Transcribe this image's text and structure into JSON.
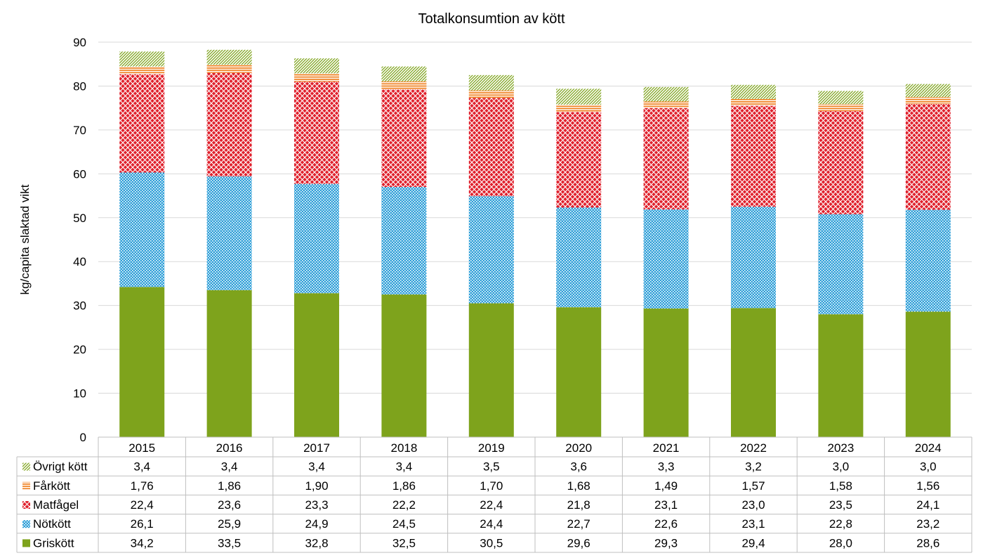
{
  "chart_data": {
    "type": "bar",
    "stacked": true,
    "title": "Totalkonsumtion av kött",
    "xlabel": "",
    "ylabel": "kg/capita slaktad vikt",
    "ylim": [
      0,
      90
    ],
    "yticks": [
      "0",
      "10",
      "20",
      "30",
      "40",
      "50",
      "60",
      "70",
      "80",
      "90"
    ],
    "grid": true,
    "legend": "data-table",
    "categories": [
      "2015",
      "2016",
      "2017",
      "2018",
      "2019",
      "2020",
      "2021",
      "2022",
      "2023",
      "2024"
    ],
    "series": [
      {
        "name": "Griskött",
        "pattern": "solid",
        "color": "#7ea31c",
        "values": [
          34.2,
          33.5,
          32.8,
          32.5,
          30.5,
          29.6,
          29.3,
          29.4,
          28.0,
          28.6
        ],
        "labels": [
          "34,2",
          "33,5",
          "32,8",
          "32,5",
          "30,5",
          "29,6",
          "29,3",
          "29,4",
          "28,0",
          "28,6"
        ]
      },
      {
        "name": "Nötkött",
        "pattern": "dotted",
        "color": "#2e9fd8",
        "values": [
          26.1,
          25.9,
          24.9,
          24.5,
          24.4,
          22.7,
          22.6,
          23.1,
          22.8,
          23.2
        ],
        "labels": [
          "26,1",
          "25,9",
          "24,9",
          "24,5",
          "24,4",
          "22,7",
          "22,6",
          "23,1",
          "22,8",
          "23,2"
        ]
      },
      {
        "name": "Matfågel",
        "pattern": "lattice",
        "color": "#e0202c",
        "values": [
          22.4,
          23.6,
          23.3,
          22.2,
          22.4,
          21.8,
          23.1,
          23.0,
          23.5,
          24.1
        ],
        "labels": [
          "22,4",
          "23,6",
          "23,3",
          "22,2",
          "22,4",
          "21,8",
          "23,1",
          "23,0",
          "23,5",
          "24,1"
        ]
      },
      {
        "name": "Fårkött",
        "pattern": "horizontal",
        "color": "#ef7d1a",
        "values": [
          1.76,
          1.86,
          1.9,
          1.86,
          1.7,
          1.68,
          1.49,
          1.57,
          1.58,
          1.56
        ],
        "labels": [
          "1,76",
          "1,86",
          "1,90",
          "1,86",
          "1,70",
          "1,68",
          "1,49",
          "1,57",
          "1,58",
          "1,56"
        ]
      },
      {
        "name": "Övrigt kött",
        "pattern": "diagonal",
        "color": "#7ea31c",
        "values": [
          3.4,
          3.4,
          3.4,
          3.4,
          3.5,
          3.6,
          3.3,
          3.2,
          3.0,
          3.0
        ],
        "labels": [
          "3,4",
          "3,4",
          "3,4",
          "3,4",
          "3,5",
          "3,6",
          "3,3",
          "3,2",
          "3,0",
          "3,0"
        ]
      }
    ]
  }
}
